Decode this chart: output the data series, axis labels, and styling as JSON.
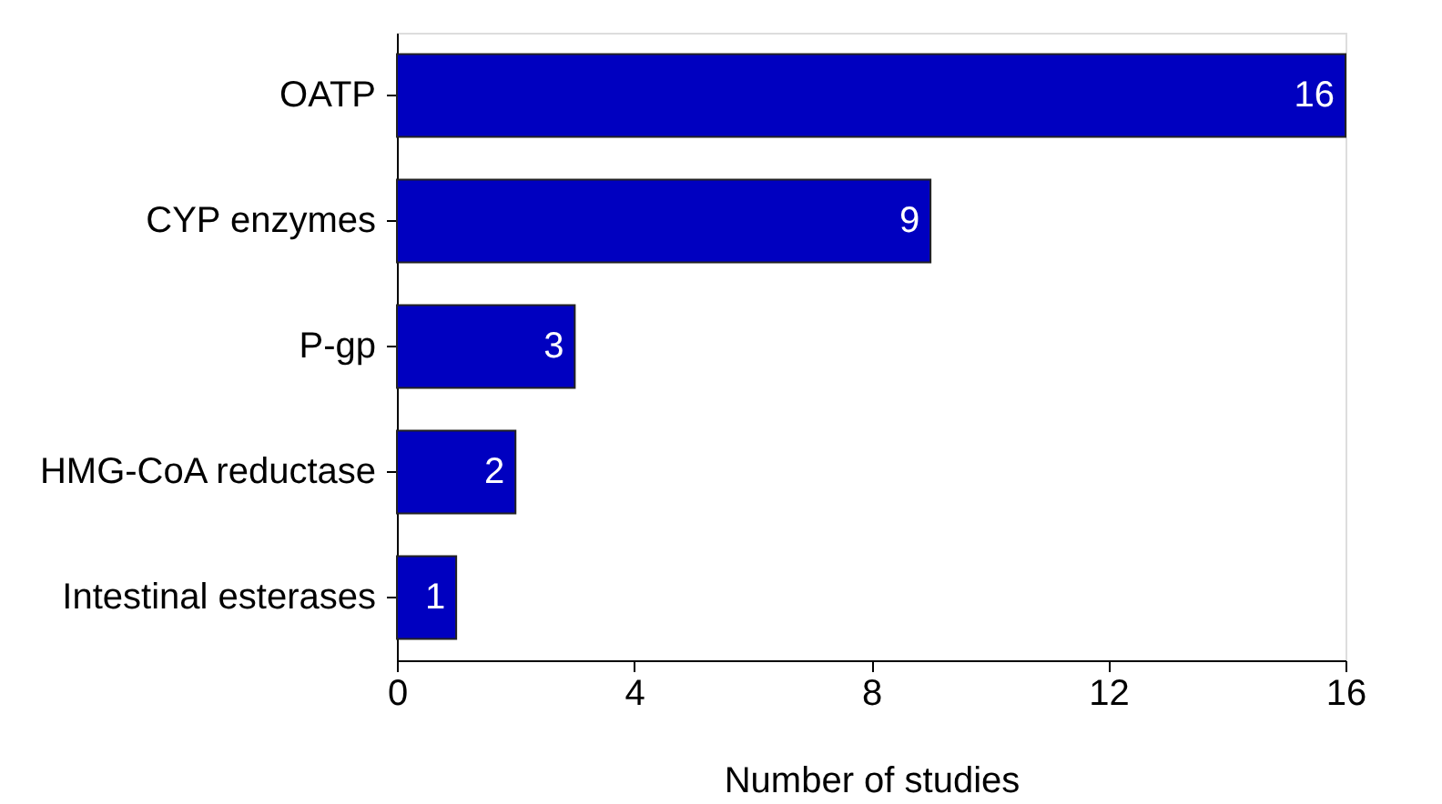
{
  "chart_data": {
    "type": "bar",
    "orientation": "horizontal",
    "xlabel": "Number of studies",
    "categories": [
      "OATP",
      "CYP enzymes",
      "P-gp",
      "HMG-CoA reductase",
      "Intestinal esterases"
    ],
    "values": [
      16,
      9,
      3,
      2,
      1
    ],
    "color": "#0000c0",
    "xlim": [
      0,
      16
    ],
    "xticks": [
      0,
      4,
      8,
      12,
      16
    ],
    "data_labels": true
  }
}
